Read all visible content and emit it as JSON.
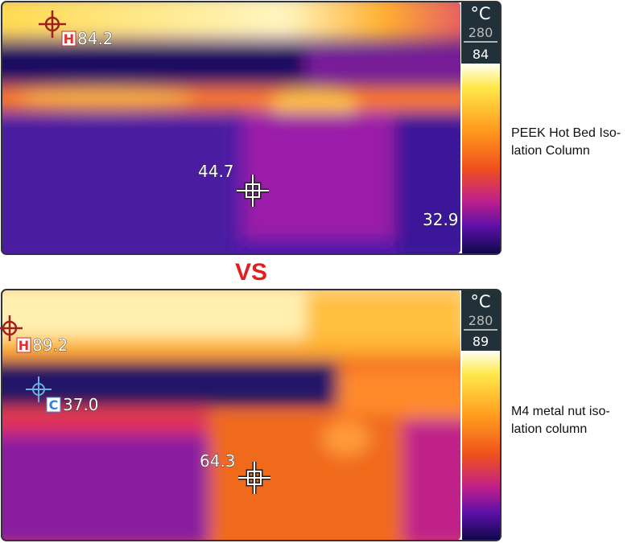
{
  "separator": "VS",
  "panels": [
    {
      "unit": "°C",
      "scale_max": "280",
      "scale_min": "84",
      "hot": {
        "tag": "H",
        "reading": "84.2"
      },
      "center": {
        "reading": "44.7"
      },
      "corner": {
        "reading": "32.9"
      },
      "caption": [
        "PEEK Hot Bed Iso-",
        "lation Column"
      ]
    },
    {
      "unit": "°C",
      "scale_max": "280",
      "scale_min": "89",
      "hot": {
        "tag": "H",
        "reading": "89.2"
      },
      "cold": {
        "tag": "C",
        "reading": "37.0"
      },
      "center": {
        "reading": "64.3"
      },
      "caption": [
        "M4 metal nut iso-",
        "lation column"
      ]
    }
  ]
}
